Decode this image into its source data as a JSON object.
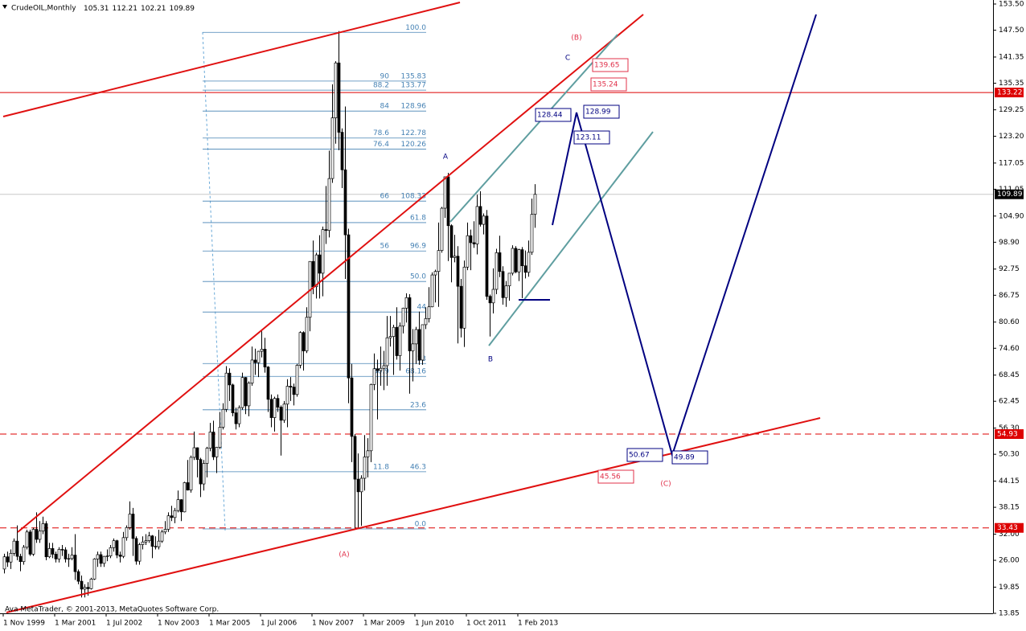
{
  "chart_data": {
    "type": "candlestick",
    "header": "CrudeOIL,Monthly",
    "header_ohlc": [
      105.31,
      112.21,
      102.21,
      109.89
    ],
    "footer": "Ava MetaTrader, © 2001-2013, MetaQuotes Software Corp.",
    "ylim": [
      13.85,
      153.5
    ],
    "yticks": [
      {
        "value": 153.5,
        "label": "153.50"
      },
      {
        "value": 147.5,
        "label": "147.50"
      },
      141.35,
      135.35,
      129.25,
      {
        "value": 123.2,
        "label": "123.20"
      },
      117.05,
      111.05,
      {
        "value": 104.9,
        "label": "104.90"
      },
      {
        "value": 98.9,
        "label": "98.90"
      },
      92.75,
      86.75,
      {
        "value": 80.6,
        "label": "80.60"
      },
      {
        "value": 74.6,
        "label": "74.60"
      },
      68.45,
      62.45,
      {
        "value": 56.3,
        "label": "56.30"
      },
      {
        "value": 50.3,
        "label": "50.30"
      },
      44.15,
      38.15,
      {
        "value": 32.0,
        "label": "32.00"
      },
      {
        "value": 26.0,
        "label": "26.00"
      },
      19.85,
      13.85
    ],
    "x_labels": [
      "1 Nov 1999",
      "1 Mar 2001",
      "1 Jul 2002",
      "1 Nov 2003",
      "1 Mar 2005",
      "1 Jul 2006",
      "1 Nov 2007",
      "1 Mar 2009",
      "1 Jun 2010",
      "1 Oct 2011",
      "1 Feb 2013"
    ],
    "bull_color": "#ffffff",
    "bear_color": "#000000",
    "wick_color": "#000000",
    "candles": [
      [
        24.0,
        27.5,
        23.0,
        26.8
      ],
      [
        26.8,
        28.0,
        24.5,
        25.6
      ],
      [
        25.6,
        28.5,
        24.0,
        27.6
      ],
      [
        27.6,
        31.0,
        27.0,
        30.4
      ],
      [
        30.4,
        34.0,
        26.0,
        26.9
      ],
      [
        26.9,
        27.5,
        23.5,
        25.7
      ],
      [
        25.7,
        29.5,
        25.0,
        29.0
      ],
      [
        29.0,
        33.0,
        28.5,
        32.5
      ],
      [
        32.5,
        33.0,
        27.0,
        27.4
      ],
      [
        27.4,
        33.5,
        27.0,
        33.1
      ],
      [
        33.1,
        37.0,
        30.0,
        30.8
      ],
      [
        30.8,
        35.0,
        30.0,
        32.7
      ],
      [
        32.7,
        36.0,
        32.0,
        34.4
      ],
      [
        34.4,
        35.0,
        26.0,
        26.8
      ],
      [
        26.8,
        30.0,
        26.5,
        28.7
      ],
      [
        28.7,
        30.0,
        26.5,
        27.4
      ],
      [
        27.4,
        28.0,
        25.5,
        26.3
      ],
      [
        26.3,
        29.0,
        25.5,
        28.5
      ],
      [
        28.5,
        29.5,
        27.0,
        28.4
      ],
      [
        28.4,
        29.0,
        25.5,
        26.3
      ],
      [
        26.3,
        27.5,
        24.5,
        26.4
      ],
      [
        26.4,
        29.0,
        26.0,
        27.2
      ],
      [
        27.2,
        32.0,
        21.5,
        23.4
      ],
      [
        23.4,
        23.9,
        20.5,
        21.2
      ],
      [
        21.2,
        22.5,
        17.5,
        19.4
      ],
      [
        19.4,
        20.5,
        17.5,
        19.8
      ],
      [
        19.8,
        21.0,
        17.9,
        19.5
      ],
      [
        19.5,
        22.0,
        19.3,
        21.7
      ],
      [
        21.7,
        26.5,
        21.5,
        26.3
      ],
      [
        26.3,
        28.0,
        24.5,
        27.3
      ],
      [
        27.3,
        28.0,
        24.5,
        25.3
      ],
      [
        25.3,
        27.0,
        24.5,
        26.9
      ],
      [
        26.9,
        28.5,
        25.8,
        27.0
      ],
      [
        27.0,
        29.5,
        26.5,
        28.9
      ],
      [
        28.9,
        31.0,
        28.0,
        30.5
      ],
      [
        30.5,
        30.7,
        26.5,
        27.2
      ],
      [
        27.2,
        28.0,
        25.5,
        26.9
      ],
      [
        26.9,
        32.5,
        26.5,
        31.2
      ],
      [
        31.2,
        34.0,
        30.5,
        33.5
      ],
      [
        33.5,
        39.5,
        33.0,
        36.6
      ],
      [
        36.6,
        38.0,
        27.0,
        31.0
      ],
      [
        31.0,
        31.5,
        25.0,
        25.8
      ],
      [
        25.8,
        30.0,
        25.0,
        29.6
      ],
      [
        29.6,
        31.5,
        28.5,
        30.2
      ],
      [
        30.2,
        32.0,
        29.5,
        30.5
      ],
      [
        30.5,
        32.5,
        30.0,
        31.6
      ],
      [
        31.6,
        31.8,
        26.5,
        29.2
      ],
      [
        29.2,
        31.5,
        28.5,
        29.1
      ],
      [
        29.1,
        33.0,
        28.5,
        30.4
      ],
      [
        30.4,
        33.0,
        30.0,
        32.5
      ],
      [
        32.5,
        35.0,
        32.0,
        33.1
      ],
      [
        33.1,
        37.0,
        32.5,
        36.2
      ],
      [
        36.2,
        38.5,
        35.0,
        35.8
      ],
      [
        35.8,
        38.0,
        34.5,
        37.4
      ],
      [
        37.4,
        42.0,
        37.0,
        39.9
      ],
      [
        39.9,
        40.0,
        35.0,
        37.1
      ],
      [
        37.1,
        44.0,
        37.0,
        43.8
      ],
      [
        43.8,
        49.0,
        42.0,
        42.1
      ],
      [
        42.1,
        50.0,
        41.5,
        49.6
      ],
      [
        49.6,
        55.5,
        49.0,
        51.8
      ],
      [
        51.8,
        51.9,
        45.0,
        49.1
      ],
      [
        49.1,
        49.5,
        40.5,
        43.5
      ],
      [
        43.5,
        49.0,
        42.0,
        48.2
      ],
      [
        48.2,
        52.0,
        45.0,
        51.7
      ],
      [
        51.7,
        57.5,
        51.0,
        55.4
      ],
      [
        55.4,
        58.0,
        49.0,
        49.7
      ],
      [
        49.7,
        52.0,
        46.0,
        51.9
      ],
      [
        51.9,
        60.0,
        51.5,
        56.5
      ],
      [
        56.5,
        62.0,
        56.0,
        60.6
      ],
      [
        60.6,
        70.5,
        60.0,
        68.9
      ],
      [
        68.9,
        70.0,
        62.5,
        66.2
      ],
      [
        66.2,
        66.5,
        59.0,
        59.8
      ],
      [
        59.8,
        61.0,
        56.0,
        57.3
      ],
      [
        57.3,
        61.5,
        56.5,
        61.0
      ],
      [
        61.0,
        69.0,
        60.5,
        67.9
      ],
      [
        67.9,
        68.0,
        59.5,
        61.4
      ],
      [
        61.4,
        67.0,
        59.0,
        66.6
      ],
      [
        66.6,
        75.0,
        66.0,
        71.9
      ],
      [
        71.9,
        74.5,
        68.5,
        71.3
      ],
      [
        71.3,
        74.0,
        68.0,
        73.9
      ],
      [
        73.9,
        78.5,
        72.5,
        74.4
      ],
      [
        74.4,
        77.0,
        69.0,
        70.3
      ],
      [
        70.3,
        70.5,
        60.0,
        62.9
      ],
      [
        62.9,
        64.0,
        56.5,
        58.7
      ],
      [
        58.7,
        63.5,
        55.5,
        63.1
      ],
      [
        63.1,
        64.0,
        60.0,
        61.1
      ],
      [
        61.1,
        61.5,
        50.0,
        58.1
      ],
      [
        58.1,
        62.5,
        57.5,
        61.8
      ],
      [
        61.8,
        67.5,
        56.5,
        65.9
      ],
      [
        65.9,
        68.0,
        62.5,
        65.7
      ],
      [
        65.7,
        66.5,
        61.5,
        64.0
      ],
      [
        64.0,
        71.0,
        63.5,
        70.7
      ],
      [
        70.7,
        78.5,
        70.0,
        78.2
      ],
      [
        78.2,
        78.5,
        69.5,
        74.0
      ],
      [
        74.0,
        84.0,
        73.5,
        81.7
      ],
      [
        81.7,
        94.5,
        78.5,
        94.5
      ],
      [
        94.5,
        99.3,
        87.0,
        88.7
      ],
      [
        88.7,
        96.5,
        86.0,
        96.0
      ],
      [
        96.0,
        100.5,
        86.0,
        91.8
      ],
      [
        91.8,
        102.5,
        86.5,
        101.8
      ],
      [
        101.8,
        111.8,
        98.5,
        101.6
      ],
      [
        101.6,
        119.9,
        100.0,
        113.5
      ],
      [
        113.5,
        135.1,
        112.5,
        127.4
      ],
      [
        127.4,
        140.4,
        121.5,
        140.0
      ],
      [
        140.0,
        147.3,
        120.0,
        124.1
      ],
      [
        124.1,
        125.0,
        111.3,
        115.5
      ],
      [
        115.5,
        130.0,
        90.5,
        100.6
      ],
      [
        100.6,
        102.0,
        62.0,
        67.8
      ],
      [
        67.8,
        71.0,
        48.5,
        54.4
      ],
      [
        54.4,
        54.9,
        33.2,
        44.6
      ],
      [
        44.6,
        50.5,
        33.5,
        41.7
      ],
      [
        41.7,
        45.5,
        33.9,
        44.8
      ],
      [
        44.8,
        54.7,
        42.0,
        49.7
      ],
      [
        49.7,
        54.0,
        45.0,
        51.1
      ],
      [
        51.1,
        66.5,
        48.5,
        66.3
      ],
      [
        66.3,
        73.4,
        65.0,
        69.9
      ],
      [
        69.9,
        72.0,
        58.3,
        69.5
      ],
      [
        69.5,
        75.0,
        66.0,
        70.0
      ],
      [
        70.0,
        74.0,
        65.0,
        70.6
      ],
      [
        70.6,
        82.0,
        66.0,
        77.0
      ],
      [
        77.0,
        82.0,
        75.0,
        77.3
      ],
      [
        77.3,
        80.0,
        68.5,
        79.4
      ],
      [
        79.4,
        84.0,
        72.0,
        72.9
      ],
      [
        72.9,
        80.5,
        69.5,
        79.7
      ],
      [
        79.7,
        83.9,
        78.0,
        83.8
      ],
      [
        83.8,
        87.2,
        80.5,
        86.2
      ],
      [
        86.2,
        87.0,
        64.2,
        74.0
      ],
      [
        74.0,
        79.0,
        67.0,
        75.6
      ],
      [
        75.6,
        79.5,
        71.0,
        78.9
      ],
      [
        78.9,
        83.0,
        70.8,
        71.9
      ],
      [
        71.9,
        80.0,
        70.8,
        80.0
      ],
      [
        80.0,
        84.0,
        79.0,
        81.4
      ],
      [
        81.4,
        88.6,
        80.5,
        84.1
      ],
      [
        84.1,
        92.0,
        84.0,
        91.4
      ],
      [
        91.4,
        92.6,
        85.1,
        92.2
      ],
      [
        92.2,
        103.4,
        84.1,
        97.0
      ],
      [
        97.0,
        107.0,
        96.5,
        106.7
      ],
      [
        106.7,
        113.9,
        104.5,
        113.9
      ],
      [
        113.9,
        114.8,
        94.6,
        102.7
      ],
      [
        102.7,
        103.0,
        89.7,
        95.4
      ],
      [
        95.4,
        100.6,
        94.3,
        95.7
      ],
      [
        95.7,
        98.0,
        75.7,
        88.8
      ],
      [
        88.8,
        90.5,
        77.1,
        79.2
      ],
      [
        79.2,
        94.7,
        74.9,
        93.2
      ],
      [
        93.2,
        103.4,
        92.5,
        100.4
      ],
      [
        100.4,
        101.8,
        92.5,
        98.8
      ],
      [
        98.8,
        103.7,
        97.6,
        98.5
      ],
      [
        98.5,
        109.8,
        96.1,
        107.1
      ],
      [
        107.1,
        110.6,
        102.5,
        103.0
      ],
      [
        103.0,
        105.5,
        100.7,
        104.9
      ],
      [
        104.9,
        106.3,
        85.7,
        86.5
      ],
      [
        86.5,
        86.9,
        77.3,
        85.0
      ],
      [
        85.0,
        92.9,
        82.6,
        88.1
      ],
      [
        88.1,
        97.4,
        87.0,
        96.5
      ],
      [
        96.5,
        100.4,
        90.9,
        92.2
      ],
      [
        92.2,
        93.4,
        84.6,
        86.2
      ],
      [
        86.2,
        90.0,
        84.1,
        88.9
      ],
      [
        88.9,
        91.5,
        85.5,
        91.8
      ],
      [
        91.8,
        98.2,
        91.3,
        97.5
      ],
      [
        97.5,
        98.0,
        91.8,
        92.1
      ],
      [
        92.1,
        97.4,
        90.0,
        97.2
      ],
      [
        97.2,
        97.8,
        86.1,
        93.5
      ],
      [
        93.5,
        97.0,
        90.6,
        92.0
      ],
      [
        92.0,
        99.3,
        91.0,
        96.6
      ],
      [
        96.6,
        108.9,
        96.0,
        105.3
      ],
      [
        105.31,
        112.21,
        102.21,
        109.89
      ]
    ],
    "price_levels": [
      {
        "value": 133.22,
        "color": "#dd0000",
        "dash": false
      },
      {
        "value": 109.89,
        "color": "#000000",
        "dash": false
      },
      {
        "value": 54.93,
        "color": "#dd0000",
        "dash": true
      },
      {
        "value": 33.43,
        "color": "#dd0000",
        "dash": true
      }
    ],
    "fib_levels": [
      {
        "ratio": "100.0",
        "value": 147.0
      },
      {
        "ratio": "90",
        "price": 135.83
      },
      {
        "ratio": "88.2",
        "price": 133.77
      },
      {
        "ratio": "84",
        "price": 128.96
      },
      {
        "ratio": "78.6",
        "price": 122.78
      },
      {
        "ratio": "76.4",
        "price": 120.26
      },
      {
        "ratio": "66",
        "price": 108.33
      },
      {
        "ratio": "61.8",
        "value": 103.4
      },
      {
        "ratio": "56",
        "price": 96.9
      },
      {
        "ratio": "50.0",
        "value": 89.9
      },
      {
        "ratio": "44",
        "value": 82.9
      },
      {
        "ratio": "33",
        "value": 71.1
      },
      {
        "ratio": "30.9",
        "price": 68.16
      },
      {
        "ratio": "23.6",
        "value": 60.5
      },
      {
        "ratio": "11.8",
        "price": 46.3
      },
      {
        "ratio": "0.0",
        "value": 33.2
      }
    ],
    "wave_labels": [
      "(B)",
      "C",
      "A",
      "B",
      "(C)",
      "(A)"
    ],
    "price_notes": [
      139.65,
      135.24,
      128.44,
      128.99,
      123.11,
      50.67,
      49.89,
      45.56
    ]
  }
}
